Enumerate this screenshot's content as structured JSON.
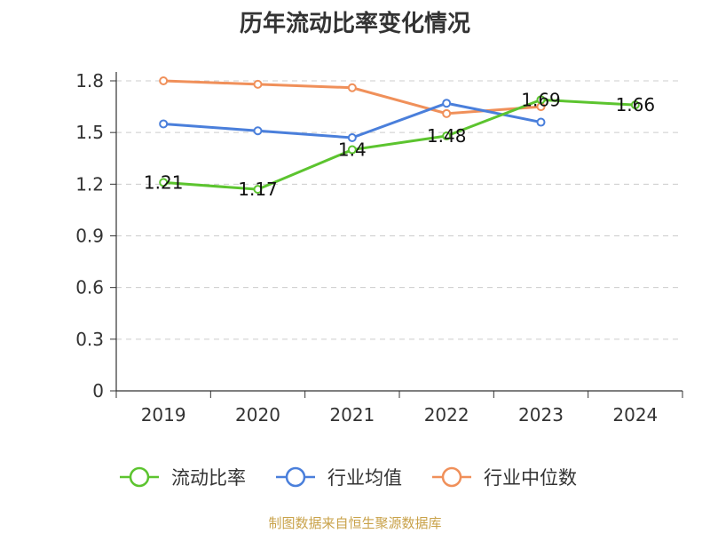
{
  "chart_data": {
    "type": "line",
    "title": "历年流动比率变化情况",
    "categories": [
      "2019",
      "2020",
      "2021",
      "2022",
      "2023",
      "2024"
    ],
    "ylim": [
      0,
      1.8
    ],
    "yticks": [
      "0",
      "0.3",
      "0.6",
      "0.9",
      "1.2",
      "1.5",
      "1.8"
    ],
    "grid": true,
    "legend_position": "bottom",
    "series": [
      {
        "name": "流动比率",
        "color": "#5cc42f",
        "values": [
          1.21,
          1.17,
          1.4,
          1.48,
          1.69,
          1.66
        ],
        "labels": [
          "1.21",
          "1.17",
          "1.4",
          "1.48",
          "1.69",
          "1.66"
        ]
      },
      {
        "name": "行业均值",
        "color": "#4a7fdb",
        "values": [
          1.55,
          1.51,
          1.47,
          1.67,
          1.56,
          null
        ]
      },
      {
        "name": "行业中位数",
        "color": "#f0905a",
        "values": [
          1.8,
          1.78,
          1.76,
          1.61,
          1.65,
          null
        ]
      }
    ]
  },
  "footer": {
    "source": "制图数据来自恒生聚源数据库"
  }
}
